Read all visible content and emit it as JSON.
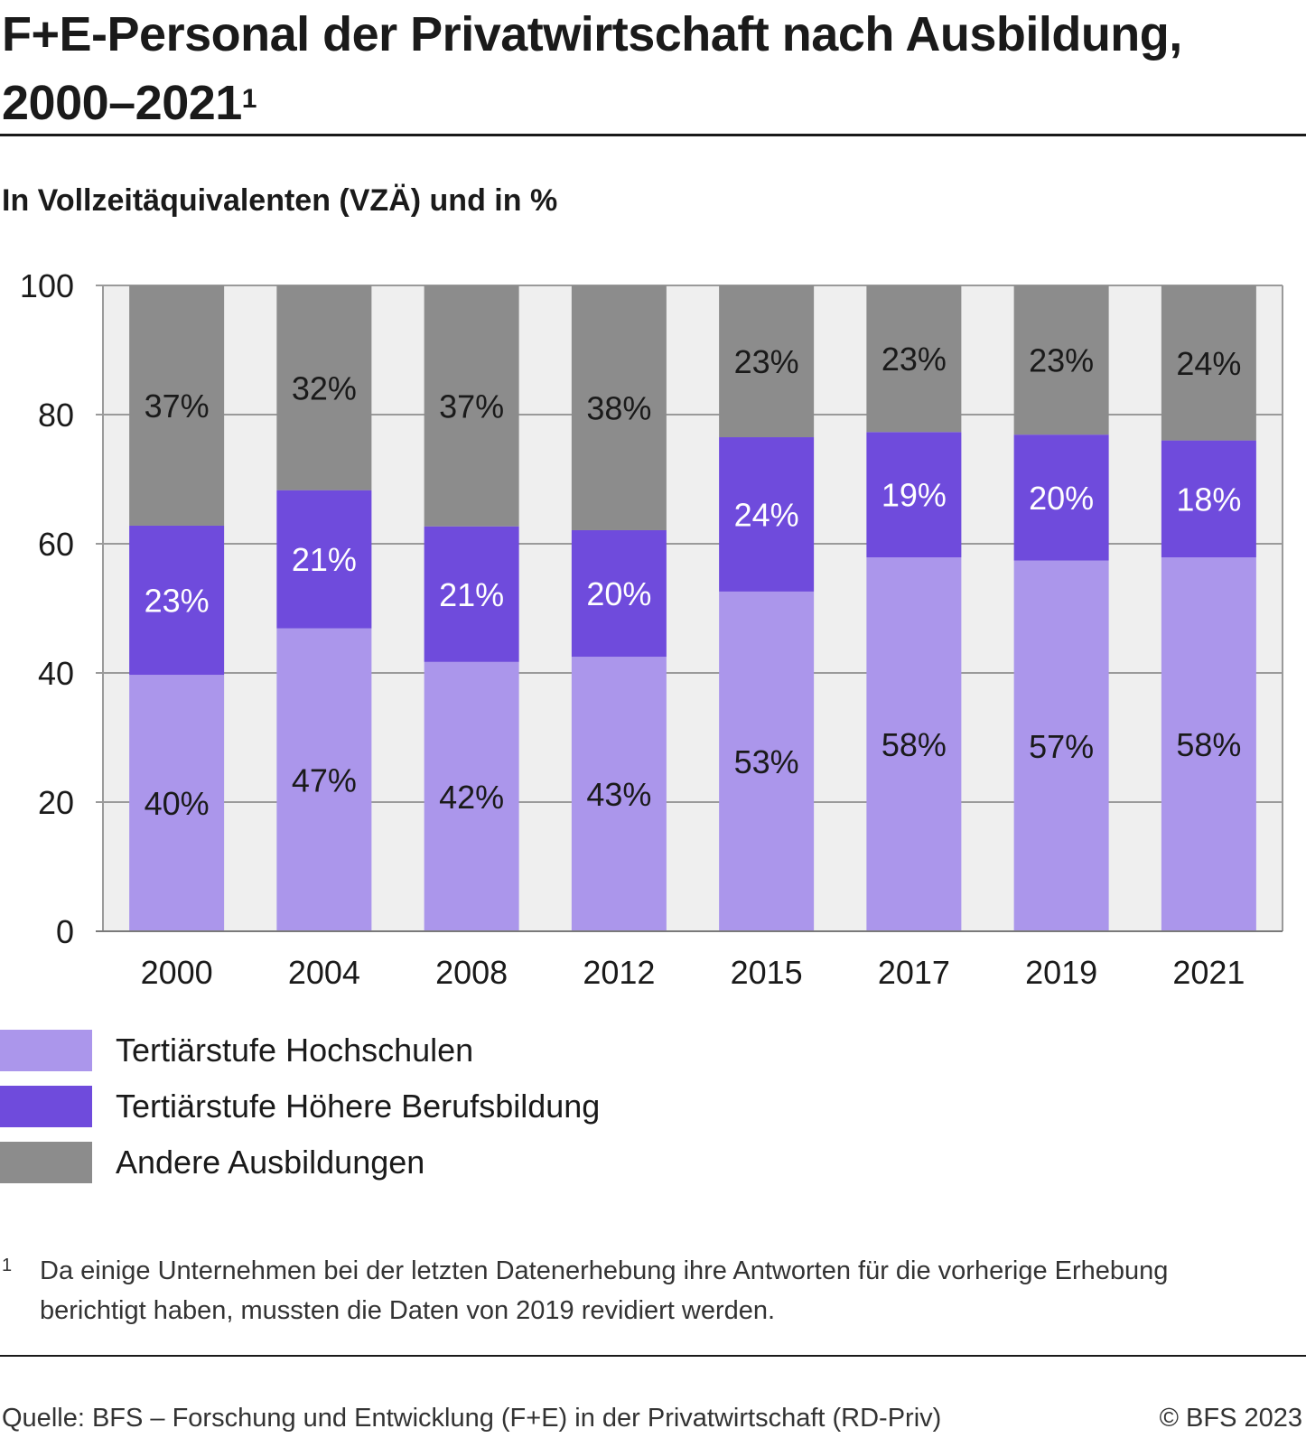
{
  "header": {
    "title_line1": "F+E-Personal der Privatwirtschaft nach Ausbildung,",
    "title_line2": "2000–2021",
    "title_footnote_mark": "1",
    "subtitle": "In Vollzeitäquivalenten (VZÄ) und in %"
  },
  "chart_data": {
    "type": "bar",
    "stacked": true,
    "title": "F+E-Personal der Privatwirtschaft nach Ausbildung, 2000–2021",
    "subtitle": "In Vollzeitäquivalenten (VZÄ) und in %",
    "categories": [
      "2000",
      "2004",
      "2008",
      "2012",
      "2015",
      "2017",
      "2019",
      "2021"
    ],
    "ylim": [
      0,
      100
    ],
    "yticks": [
      0,
      20,
      40,
      60,
      80,
      100
    ],
    "grid": true,
    "legend_position": "bottom",
    "series": [
      {
        "name": "Tertiärstufe Hochschulen",
        "color": "#ab96eb",
        "values": [
          39.7,
          46.9,
          41.7,
          42.5,
          52.6,
          57.9,
          57.4,
          57.9
        ],
        "labels": [
          "40%",
          "47%",
          "42%",
          "43%",
          "53%",
          "58%",
          "57%",
          "58%"
        ],
        "label_color": "#1a1a1a"
      },
      {
        "name": "Tertiärstufe Höhere Berufsbildung",
        "color": "#6f4bdc",
        "values": [
          23.1,
          21.4,
          21.0,
          19.6,
          23.9,
          19.4,
          19.5,
          18.1
        ],
        "labels": [
          "23%",
          "21%",
          "21%",
          "20%",
          "24%",
          "19%",
          "20%",
          "18%"
        ],
        "label_color": "#ffffff"
      },
      {
        "name": "Andere Ausbildungen",
        "color": "#8c8c8c",
        "values": [
          37.2,
          31.7,
          37.3,
          37.9,
          23.5,
          22.7,
          23.1,
          24.0
        ],
        "labels": [
          "37%",
          "32%",
          "37%",
          "38%",
          "23%",
          "23%",
          "23%",
          "24%"
        ],
        "label_color": "#1a1a1a"
      }
    ]
  },
  "legend": {
    "items": [
      {
        "label": "Tertiärstufe Hochschulen",
        "color": "#ab96eb"
      },
      {
        "label": "Tertiärstufe Höhere Berufsbildung",
        "color": "#6f4bdc"
      },
      {
        "label": "Andere Ausbildungen",
        "color": "#8c8c8c"
      }
    ]
  },
  "footnote": {
    "mark": "1",
    "text": "Da einige Unternehmen bei der letzten Datenerhebung ihre Antworten für die vorherige Erhebung berichtigt haben, mussten die Daten von 2019 revidiert werden."
  },
  "footer": {
    "source": "Quelle: BFS – Forschung und Entwicklung (F+E) in der Privatwirtschaft (RD-Priv)",
    "copyright": "© BFS 2023"
  }
}
